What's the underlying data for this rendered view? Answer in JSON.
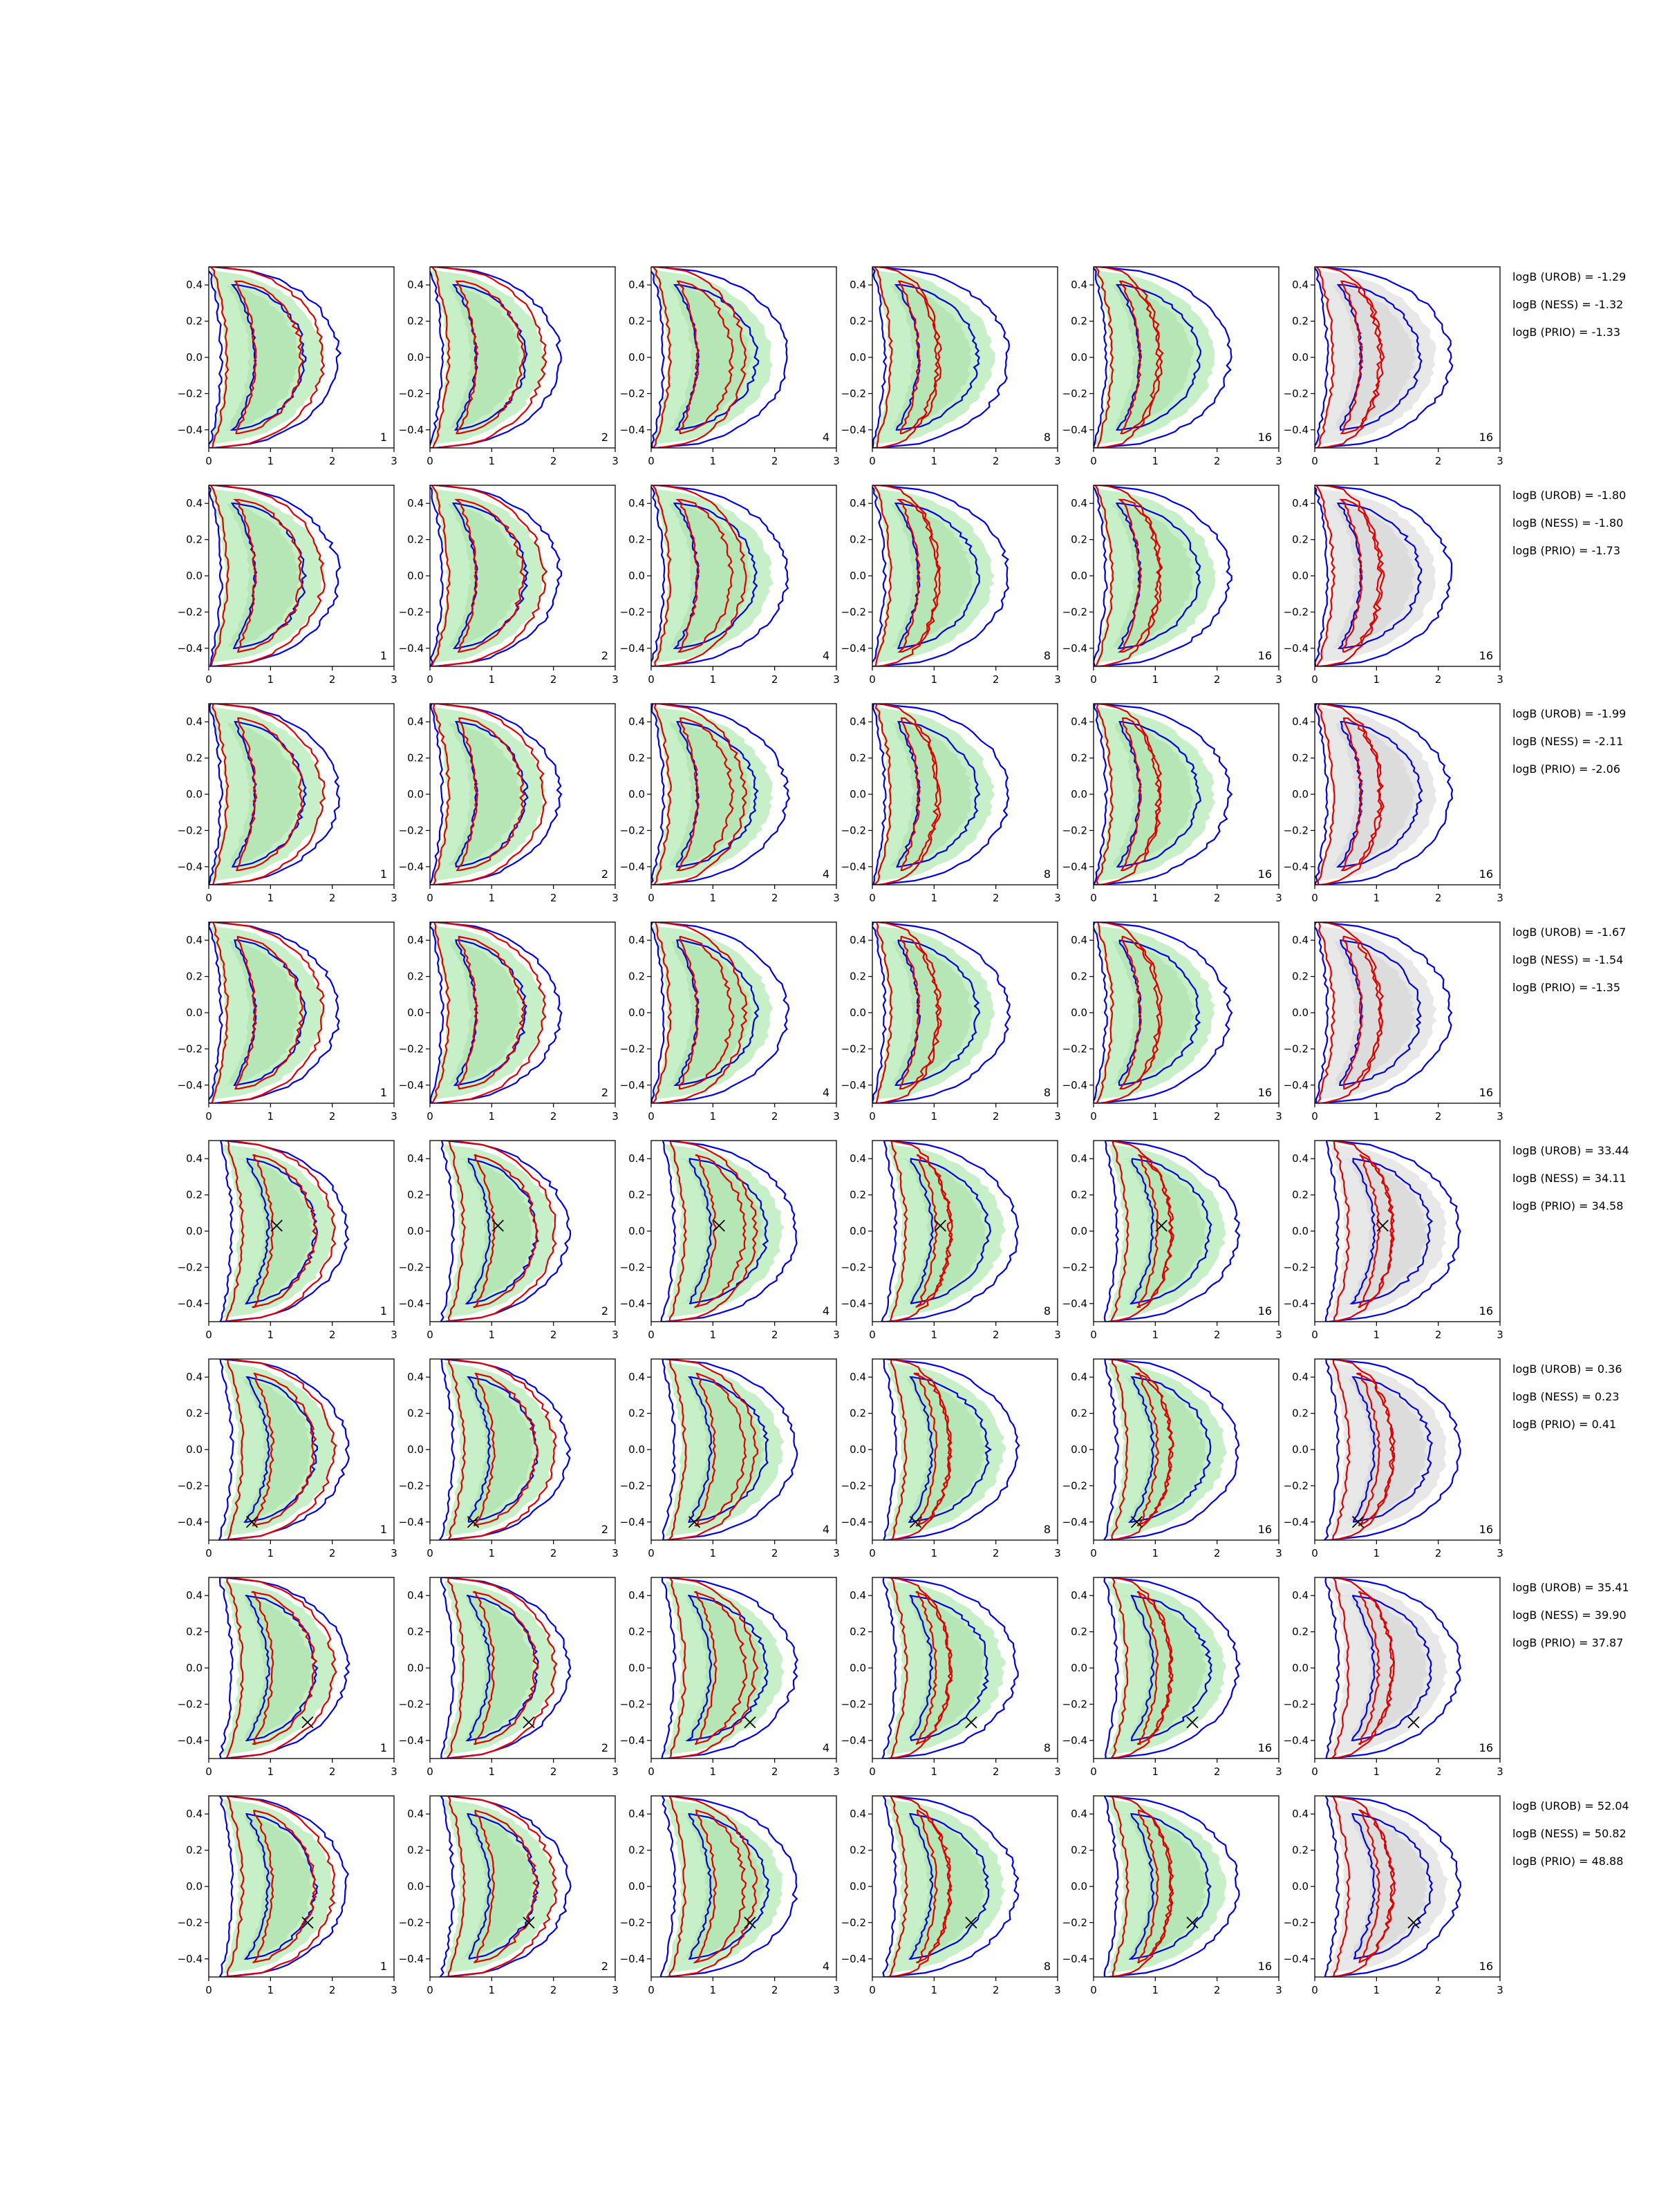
{
  "chart_data": {
    "type": "contour",
    "grid": {
      "rows": 8,
      "cols": 6
    },
    "xlim": [
      0,
      3
    ],
    "ylim": [
      -0.5,
      0.5
    ],
    "x_ticks": [
      0,
      1,
      2,
      3
    ],
    "y_ticks": [
      -0.4,
      -0.2,
      0.0,
      0.2,
      0.4
    ],
    "x_tick_labels": [
      "0",
      "1",
      "2",
      "3"
    ],
    "y_tick_labels": [
      "−0.4",
      "−0.2",
      "0.0",
      "0.2",
      "0.4"
    ],
    "column_labels": [
      "1",
      "2",
      "4",
      "8",
      "16",
      "16"
    ],
    "colors": {
      "blue": "#0000dd",
      "red": "#dd0000",
      "green_outer": "#c8f0c8",
      "green_inner": "#a8dca8",
      "gray_outer": "#e8e8e8",
      "gray_inner": "#d2d2d2"
    },
    "rows": [
      {
        "logB": [
          "logB (UROB) = -1.29",
          "logB (NESS) = -1.32",
          "logB (PRIO) = -1.33"
        ],
        "marker": null
      },
      {
        "logB": [
          "logB (UROB) = -1.80",
          "logB (NESS) = -1.80",
          "logB (PRIO) = -1.73"
        ],
        "marker": null
      },
      {
        "logB": [
          "logB (UROB) = -1.99",
          "logB (NESS) = -2.11",
          "logB (PRIO) = -2.06"
        ],
        "marker": null
      },
      {
        "logB": [
          "logB (UROB) = -1.67",
          "logB (NESS) = -1.54",
          "logB (PRIO) = -1.35"
        ],
        "marker": null
      },
      {
        "logB": [
          "logB (UROB) = 33.44",
          "logB (NESS) = 34.11",
          "logB (PRIO) = 34.58"
        ],
        "marker": [
          1.1,
          0.03
        ]
      },
      {
        "logB": [
          "logB (UROB) = 0.36",
          "logB (NESS) = 0.23",
          "logB (PRIO) = 0.41"
        ],
        "marker": [
          0.7,
          -0.4
        ]
      },
      {
        "logB": [
          "logB (UROB) = 35.41",
          "logB (NESS) = 39.90",
          "logB (PRIO) = 37.87"
        ],
        "marker": [
          1.6,
          -0.3
        ]
      },
      {
        "logB": [
          "logB (UROB) = 52.04",
          "logB (NESS) = 50.82",
          "logB (PRIO) = 48.88"
        ],
        "marker": [
          1.6,
          -0.2
        ]
      }
    ]
  }
}
